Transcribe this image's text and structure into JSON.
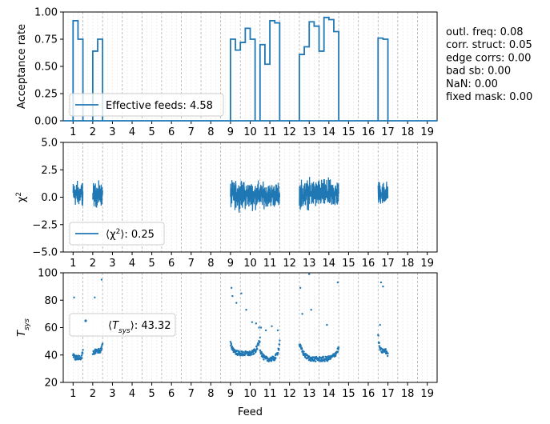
{
  "chart_data": [
    {
      "type": "line",
      "ylabel": "Acceptance rate",
      "xlabel": "",
      "xlim": [
        0.5,
        19.5
      ],
      "ylim": [
        0,
        1
      ],
      "xticks": [
        "1",
        "2",
        "3",
        "4",
        "5",
        "6",
        "7",
        "8",
        "9",
        "10",
        "11",
        "12",
        "13",
        "14",
        "15",
        "16",
        "17",
        "18",
        "19"
      ],
      "yticks": [
        "0.00",
        "0.25",
        "0.50",
        "0.75",
        "1.00"
      ],
      "yticks_values": [
        0,
        0.25,
        0.5,
        0.75,
        1.0
      ],
      "legend": "Effective feeds: 4.58",
      "legend_position": "lower-left",
      "series_color": "#1f77b4",
      "steps": [
        [
          0.5,
          0
        ],
        [
          0.5,
          0.92
        ],
        [
          0.75,
          0.92
        ],
        [
          0.75,
          0.75
        ],
        [
          1.0,
          0.75
        ],
        [
          1.0,
          0
        ],
        [
          1.5,
          0
        ],
        [
          1.5,
          0.64
        ],
        [
          1.75,
          0.64
        ],
        [
          1.75,
          0.75
        ],
        [
          2.0,
          0.75
        ],
        [
          2.0,
          0
        ],
        [
          8.5,
          0
        ],
        [
          8.5,
          0.75
        ],
        [
          8.75,
          0.75
        ],
        [
          8.75,
          0.65
        ],
        [
          9.0,
          0.65
        ],
        [
          9.0,
          0.72
        ],
        [
          9.25,
          0.72
        ],
        [
          9.25,
          0.85
        ],
        [
          9.5,
          0.85
        ],
        [
          9.5,
          0.75
        ],
        [
          9.75,
          0.75
        ],
        [
          9.75,
          0
        ],
        [
          10.0,
          0
        ],
        [
          10.0,
          0.7
        ],
        [
          10.25,
          0.7
        ],
        [
          10.25,
          0.52
        ],
        [
          10.5,
          0.52
        ],
        [
          10.5,
          0.92
        ],
        [
          10.75,
          0.92
        ],
        [
          10.75,
          0.9
        ],
        [
          11.0,
          0.9
        ],
        [
          11.0,
          0
        ],
        [
          12.0,
          0
        ],
        [
          12.0,
          0.61
        ],
        [
          12.25,
          0.61
        ],
        [
          12.25,
          0.68
        ],
        [
          12.5,
          0.68
        ],
        [
          12.5,
          0.91
        ],
        [
          12.75,
          0.91
        ],
        [
          12.75,
          0.87
        ],
        [
          13.0,
          0.87
        ],
        [
          13.0,
          0.64
        ],
        [
          13.25,
          0.64
        ],
        [
          13.25,
          0.95
        ],
        [
          13.5,
          0.95
        ],
        [
          13.5,
          0.93
        ],
        [
          13.75,
          0.93
        ],
        [
          13.75,
          0.82
        ],
        [
          14.0,
          0.82
        ],
        [
          14.0,
          0
        ],
        [
          16.0,
          0
        ],
        [
          16.0,
          0.76
        ],
        [
          16.25,
          0.76
        ],
        [
          16.25,
          0.75
        ],
        [
          16.5,
          0.75
        ],
        [
          16.5,
          0
        ]
      ],
      "side_text": [
        "outl. freq: 0.08",
        "corr. struct: 0.05",
        "edge corrs: 0.00",
        "bad sb: 0.00",
        "NaN: 0.00",
        "fixed mask: 0.00"
      ]
    },
    {
      "type": "line",
      "ylabel": "χ²",
      "xlabel": "",
      "xlim": [
        0.5,
        19.5
      ],
      "ylim": [
        -5,
        5
      ],
      "xticks": [
        "1",
        "2",
        "3",
        "4",
        "5",
        "6",
        "7",
        "8",
        "9",
        "10",
        "11",
        "12",
        "13",
        "14",
        "15",
        "16",
        "17",
        "18",
        "19"
      ],
      "yticks": [
        "−5.0",
        "−2.5",
        "0.0",
        "2.5",
        "5.0"
      ],
      "yticks_values": [
        -5,
        -2.5,
        0,
        2.5,
        5
      ],
      "legend": "⟨χ²⟩: 0.25",
      "legend_position": "lower-left",
      "series_color": "#1f77b4",
      "segments": [
        {
          "x": [
            0.5,
            1.0
          ],
          "center": 0.3,
          "amp": 1.6
        },
        {
          "x": [
            1.5,
            2.0
          ],
          "center": 0.2,
          "amp": 1.5
        },
        {
          "x": [
            8.5,
            10.0
          ],
          "center": 0.2,
          "amp": 1.7
        },
        {
          "x": [
            10.0,
            11.0
          ],
          "center": 0.2,
          "amp": 1.5
        },
        {
          "x": [
            12.0,
            14.0
          ],
          "center": 0.3,
          "amp": 1.8
        },
        {
          "x": [
            16.0,
            16.5
          ],
          "center": 0.4,
          "amp": 1.5
        }
      ]
    },
    {
      "type": "scatter",
      "ylabel": "T_sys",
      "xlabel": "Feed",
      "xlim": [
        0.5,
        19.5
      ],
      "ylim": [
        20,
        100
      ],
      "xticks": [
        "1",
        "2",
        "3",
        "4",
        "5",
        "6",
        "7",
        "8",
        "9",
        "10",
        "11",
        "12",
        "13",
        "14",
        "15",
        "16",
        "17",
        "18",
        "19"
      ],
      "yticks": [
        "20",
        "40",
        "60",
        "80",
        "100"
      ],
      "yticks_values": [
        20,
        40,
        60,
        80,
        100
      ],
      "legend": "⟨T_sys⟩: 43.32",
      "legend_position": "center-left",
      "series_color": "#1f77b4",
      "segments": [
        {
          "x": [
            0.5,
            1.0
          ],
          "base": 38,
          "rise_start": 40,
          "rise_end": 42
        },
        {
          "x": [
            1.5,
            2.0
          ],
          "base": 43,
          "rise_start": 40,
          "rise_end": 48
        },
        {
          "x": [
            8.5,
            10.0
          ],
          "base": 41,
          "rise_start": 48,
          "rise_end": 52
        },
        {
          "x": [
            10.0,
            11.0
          ],
          "base": 37,
          "rise_start": 45,
          "rise_end": 50
        },
        {
          "x": [
            12.0,
            14.0
          ],
          "base": 37,
          "rise_start": 48,
          "rise_end": 45
        },
        {
          "x": [
            16.0,
            16.5
          ],
          "base": 43,
          "rise_start": 55,
          "rise_end": 40
        }
      ],
      "outliers": [
        [
          0.55,
          82
        ],
        [
          1.6,
          82
        ],
        [
          1.95,
          95
        ],
        [
          8.55,
          89
        ],
        [
          8.6,
          83
        ],
        [
          8.8,
          78
        ],
        [
          9.05,
          85
        ],
        [
          9.3,
          73
        ],
        [
          9.6,
          64
        ],
        [
          9.8,
          63
        ],
        [
          9.95,
          60
        ],
        [
          10.05,
          60
        ],
        [
          10.3,
          58
        ],
        [
          10.6,
          61
        ],
        [
          10.9,
          58
        ],
        [
          12.05,
          89
        ],
        [
          12.15,
          70
        ],
        [
          12.5,
          99
        ],
        [
          12.6,
          73
        ],
        [
          13.4,
          62
        ],
        [
          13.95,
          93
        ],
        [
          16.15,
          93
        ],
        [
          16.25,
          90
        ],
        [
          16.1,
          62
        ]
      ]
    }
  ],
  "icons": {
    "legend_line": "line-marker",
    "legend_point": "dot-marker"
  }
}
